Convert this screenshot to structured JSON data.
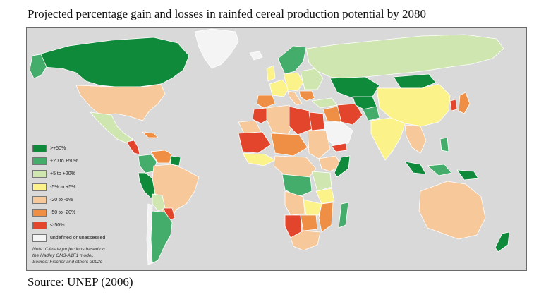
{
  "title": "Projected percentage gain and losses in rainfed cereal production potential by 2080",
  "legend": {
    "items": [
      {
        "label": ">+50%",
        "color": "#0f8a3a"
      },
      {
        "label": "+20 to +50%",
        "color": "#44ad6b"
      },
      {
        "label": "+5 to +20%",
        "color": "#cfe6b0"
      },
      {
        "label": "-5% to +5%",
        "color": "#fbf28a"
      },
      {
        "label": "-20 to -5%",
        "color": "#f6c89a"
      },
      {
        "label": "-50 to -20%",
        "color": "#ee8f45"
      },
      {
        "label": "<-50%",
        "color": "#e2452b"
      },
      {
        "label": "undefined or unassessed",
        "color": "#f4f4f4"
      }
    ],
    "note": [
      "Note: Climate projections based on",
      "the Hadley CM3-A1F1 model.",
      "Source: Fischer and others 2002c"
    ]
  },
  "source": "Source: UNEP (2006)",
  "colors": {
    "ocean": "#d9d9d9",
    "border": "#ffffff"
  }
}
